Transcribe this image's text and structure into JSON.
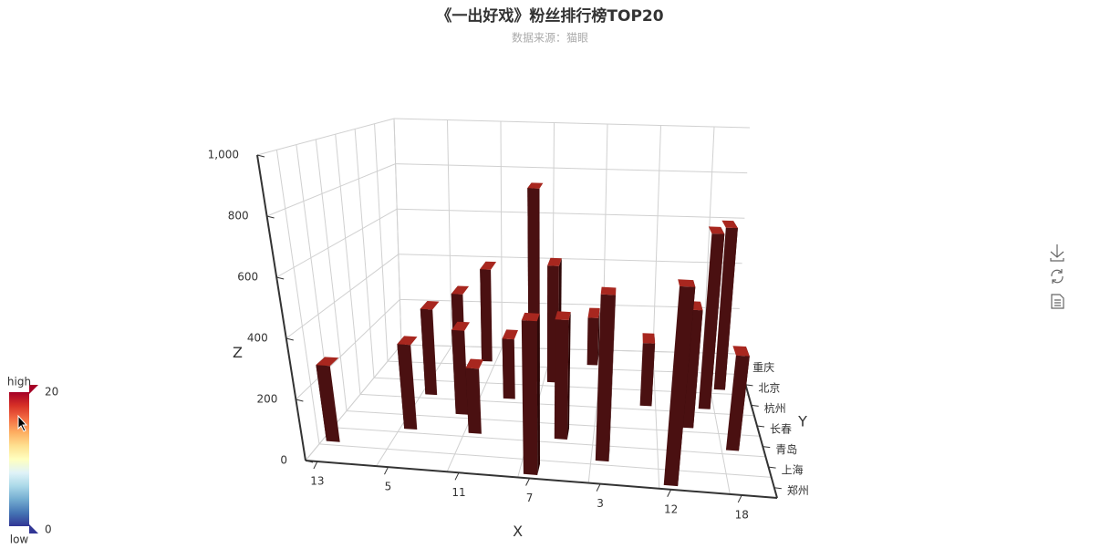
{
  "chart_data": {
    "type": "bar3d",
    "title": "《一出好戏》粉丝排行榜TOP20",
    "subtitle": "数据来源：猫眼",
    "x_axis_name": "X",
    "y_axis_name": "Y",
    "z_axis_name": "Z",
    "categories": [
      "13",
      null,
      null,
      "5",
      null,
      null,
      "11",
      null,
      null,
      "7",
      null,
      null,
      "3",
      null,
      null,
      "12",
      null,
      null,
      "18",
      null
    ],
    "y_categories": [
      "郑州",
      "上海",
      "青岛",
      "长春",
      "杭州",
      "北京",
      "重庆"
    ],
    "x_index": [
      0,
      3,
      3,
      4,
      5,
      5,
      6,
      7,
      8,
      9,
      9,
      10,
      11,
      12,
      14,
      15,
      16,
      17,
      18,
      18
    ],
    "y_index": [
      1,
      2,
      4,
      5,
      3,
      6,
      2,
      4,
      5,
      0,
      5,
      2,
      6,
      1,
      4,
      0,
      3,
      4,
      5,
      2
    ],
    "values": [
      260,
      300,
      330,
      340,
      310,
      390,
      230,
      230,
      780,
      500,
      470,
      420,
      200,
      560,
      240,
      640,
      430,
      670,
      650,
      330
    ],
    "color": "#4a1011",
    "top_color": "#a8271f",
    "zlim": [
      0,
      1000
    ],
    "zticks": [
      0,
      200,
      400,
      600,
      800,
      {
        "value": 1000,
        "label": "1,000"
      }
    ],
    "grid": true,
    "visual_map": {
      "min": 0,
      "max": 20,
      "high_text": "high",
      "low_text": "low",
      "colors": [
        "#313695",
        "#4575b4",
        "#74add1",
        "#abd9e9",
        "#e0f3f8",
        "#ffffbf",
        "#fee090",
        "#fdae61",
        "#f46d43",
        "#d73027",
        "#a50026"
      ]
    }
  }
}
